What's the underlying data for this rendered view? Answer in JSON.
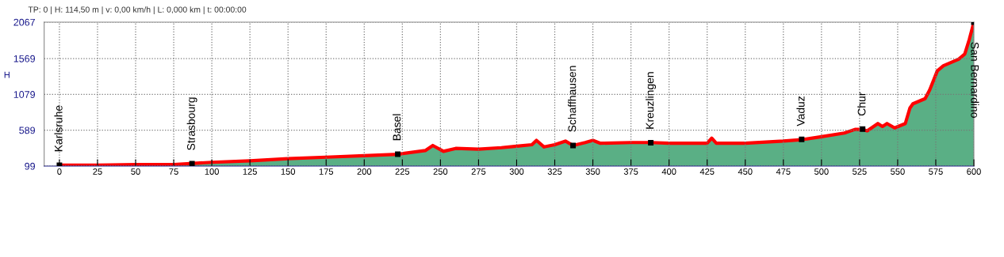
{
  "chart_data": {
    "type": "area",
    "ylabel": "H",
    "x": [
      0,
      25,
      50,
      75,
      100,
      125,
      150,
      175,
      200,
      222,
      240,
      245,
      252,
      260,
      275,
      290,
      300,
      310,
      313,
      318,
      325,
      332,
      337,
      345,
      350,
      355,
      375,
      388,
      400,
      425,
      428,
      431,
      450,
      475,
      487,
      500,
      515,
      522,
      527,
      530,
      537,
      540,
      543,
      548,
      555,
      558,
      560,
      568,
      571,
      576,
      580,
      590,
      594,
      597,
      600
    ],
    "series": [
      {
        "color": "#5aaf85",
        "values": [
          110,
          110,
          120,
          120,
          150,
          170,
          200,
          220,
          240,
          260,
          310,
          380,
          300,
          340,
          330,
          350,
          370,
          390,
          450,
          360,
          390,
          440,
          380,
          420,
          450,
          410,
          420,
          420,
          410,
          410,
          480,
          410,
          410,
          440,
          460,
          500,
          550,
          600,
          600,
          580,
          680,
          640,
          680,
          620,
          680,
          890,
          950,
          1020,
          1140,
          1400,
          1470,
          1560,
          1630,
          1830,
          2067
        ]
      },
      {
        "type": "line",
        "color": "#ff0000",
        "values": [
          110,
          110,
          120,
          120,
          150,
          170,
          200,
          220,
          240,
          260,
          310,
          380,
          300,
          340,
          330,
          350,
          370,
          390,
          450,
          360,
          390,
          440,
          380,
          420,
          450,
          410,
          420,
          420,
          410,
          410,
          480,
          410,
          410,
          440,
          460,
          500,
          550,
          600,
          600,
          580,
          680,
          640,
          680,
          620,
          680,
          890,
          950,
          1020,
          1140,
          1400,
          1470,
          1560,
          1630,
          1830,
          2067
        ]
      }
    ],
    "xlim": [
      -10,
      600
    ],
    "xticks": [
      0,
      25,
      50,
      75,
      100,
      125,
      150,
      175,
      200,
      225,
      250,
      275,
      300,
      325,
      350,
      375,
      400,
      425,
      450,
      475,
      500,
      525,
      550,
      575,
      600
    ],
    "ylim": [
      99,
      2067
    ],
    "yticks": [
      99,
      589,
      1079,
      1569,
      2067
    ],
    "grid": true,
    "annotations": [
      "TP: 0 | H: 114,50 m | v: 0,00 km/h | L: 0,000 km | t: 00:00:00",
      {
        "text": "Karlsruhe",
        "x": 0,
        "y": 110
      },
      {
        "text": "Strasbourg",
        "x": 87,
        "y": 130
      },
      {
        "text": "Basel",
        "x": 222,
        "y": 261
      },
      {
        "text": "Schaffhausen",
        "x": 337,
        "y": 380
      },
      {
        "text": "Kreuzlingen",
        "x": 388,
        "y": 418
      },
      {
        "text": "Vaduz",
        "x": 487,
        "y": 463
      },
      {
        "text": "Chur",
        "x": 527,
        "y": 603
      },
      {
        "text": "San Bernardino",
        "x": 600,
        "y": 2067
      }
    ]
  }
}
